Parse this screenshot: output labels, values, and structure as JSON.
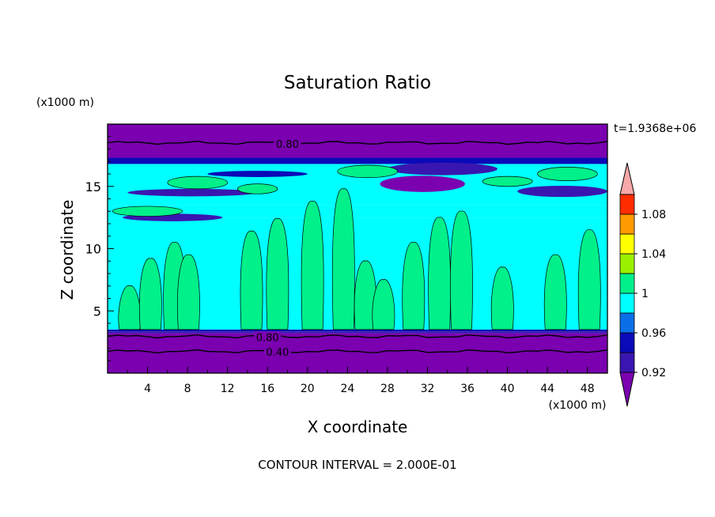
{
  "chart_data": {
    "type": "heatmap",
    "title": "Saturation Ratio",
    "xlabel": "X coordinate",
    "ylabel": "Z coordinate",
    "x_units": "(x1000 m)",
    "y_units": "(x1000 m)",
    "time_label": "t=1.9368e+06",
    "footer": "CONTOUR INTERVAL = 2.000E-01",
    "xlim": [
      0,
      50
    ],
    "ylim": [
      0,
      20
    ],
    "x_ticks": [
      4,
      8,
      12,
      16,
      20,
      24,
      28,
      32,
      36,
      40,
      44,
      48
    ],
    "y_ticks": [
      5,
      10,
      15
    ],
    "contour_labels": [
      {
        "text": "0.80",
        "x": 18,
        "z": 18.4
      },
      {
        "text": "0.80",
        "x": 16,
        "z": 2.9
      },
      {
        "text": "0.40",
        "x": 17,
        "z": 1.7
      }
    ],
    "colorbar": {
      "levels": [
        0.92,
        0.94,
        0.96,
        0.98,
        1.0,
        1.02,
        1.04,
        1.06,
        1.08,
        1.1
      ],
      "tick_labels": [
        "0.92",
        "0.96",
        "1",
        "1.04",
        "1.08"
      ],
      "colors": [
        "#7a00b0",
        "#3a16b0",
        "#0a0ab8",
        "#0b6fe8",
        "#00ffff",
        "#00f08a",
        "#9bf000",
        "#ffff00",
        "#ff9a00",
        "#ff2c00",
        "#f8a8a8"
      ]
    },
    "bands": [
      {
        "z0": 0,
        "z1": 3.2,
        "v": 0.88
      },
      {
        "z0": 3.2,
        "z1": 3.35,
        "v": 0.93
      },
      {
        "z0": 3.35,
        "z1": 3.5,
        "v": 0.95
      },
      {
        "z0": 3.5,
        "z1": 12.5,
        "v": 0.99
      },
      {
        "z0": 12.5,
        "z1": 13.5,
        "v": 0.98
      },
      {
        "z0": 13.5,
        "z1": 16.8,
        "v": 0.99
      },
      {
        "z0": 16.8,
        "z1": 17.3,
        "v": 0.95
      },
      {
        "z0": 17.3,
        "z1": 20,
        "v": 0.88
      }
    ],
    "cloud_columns": [
      {
        "x": 2.2,
        "z0": 3.5,
        "z1": 7.0
      },
      {
        "x": 4.3,
        "z0": 3.5,
        "z1": 9.2
      },
      {
        "x": 6.7,
        "z0": 3.5,
        "z1": 10.5
      },
      {
        "x": 8.1,
        "z0": 3.5,
        "z1": 9.5
      },
      {
        "x": 14.4,
        "z0": 3.5,
        "z1": 11.4
      },
      {
        "x": 17.0,
        "z0": 3.5,
        "z1": 12.4
      },
      {
        "x": 20.5,
        "z0": 3.5,
        "z1": 13.8
      },
      {
        "x": 23.6,
        "z0": 3.5,
        "z1": 14.8
      },
      {
        "x": 25.8,
        "z0": 3.5,
        "z1": 9.0
      },
      {
        "x": 27.6,
        "z0": 3.5,
        "z1": 7.5
      },
      {
        "x": 30.6,
        "z0": 3.5,
        "z1": 10.5
      },
      {
        "x": 33.2,
        "z0": 3.5,
        "z1": 12.5
      },
      {
        "x": 35.4,
        "z0": 3.5,
        "z1": 13.0
      },
      {
        "x": 39.5,
        "z0": 3.5,
        "z1": 8.5
      },
      {
        "x": 44.8,
        "z0": 3.5,
        "z1": 9.5
      },
      {
        "x": 48.2,
        "z0": 3.5,
        "z1": 11.5
      }
    ],
    "cloud_blobs": [
      {
        "x": 9,
        "z": 15.3,
        "w": 6,
        "h": 1.0
      },
      {
        "x": 15,
        "z": 14.8,
        "w": 4,
        "h": 0.8
      },
      {
        "x": 26,
        "z": 16.2,
        "w": 6,
        "h": 1.0
      },
      {
        "x": 46,
        "z": 16.0,
        "w": 6,
        "h": 1.1
      },
      {
        "x": 4,
        "z": 13.0,
        "w": 7,
        "h": 0.8
      },
      {
        "x": 40,
        "z": 15.4,
        "w": 5,
        "h": 0.8
      }
    ],
    "dry_layers": [
      {
        "x": 8.5,
        "z": 14.5,
        "w": 13,
        "h": 0.6,
        "v": 0.93
      },
      {
        "x": 31.5,
        "z": 15.2,
        "w": 8.5,
        "h": 1.3,
        "v": 0.88
      },
      {
        "x": 33.5,
        "z": 16.4,
        "w": 11,
        "h": 1.0,
        "v": 0.93
      },
      {
        "x": 45.5,
        "z": 14.6,
        "w": 9,
        "h": 0.9,
        "v": 0.93
      },
      {
        "x": 6.5,
        "z": 12.5,
        "w": 10,
        "h": 0.6,
        "v": 0.93
      },
      {
        "x": 15,
        "z": 16.0,
        "w": 10,
        "h": 0.5,
        "v": 0.95
      }
    ]
  }
}
